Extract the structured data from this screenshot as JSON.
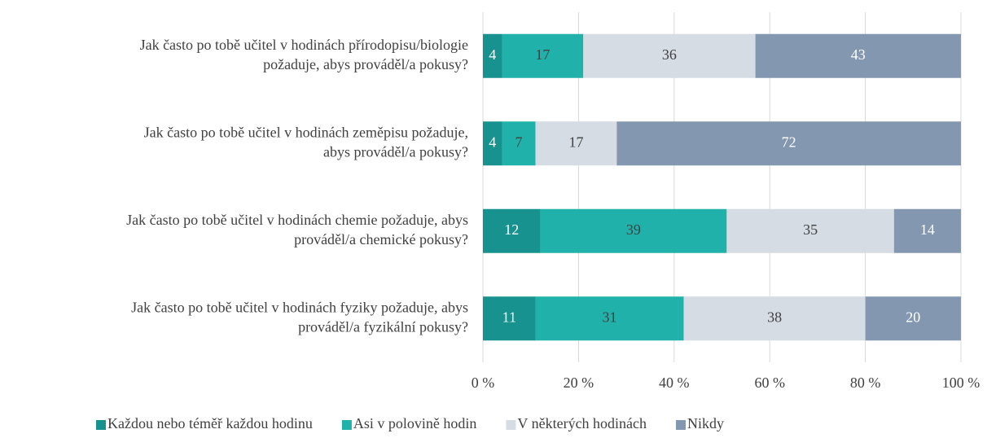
{
  "chart_data": {
    "type": "stacked_bar_horizontal",
    "categories": [
      [
        "Jak často po tobě učitel v hodinách přírodopisu/biologie",
        "požaduje, abys prováděl/a pokusy?"
      ],
      [
        "Jak často po tobě učitel v hodinách zeměpisu požaduje,",
        "abys prováděl/a pokusy?"
      ],
      [
        "Jak často po tobě učitel v hodinách chemie požaduje, abys",
        "prováděl/a chemické pokusy?"
      ],
      [
        "Jak často po tobě učitel v hodinách fyziky požaduje, abys",
        "prováděl/a fyzikální pokusy?"
      ]
    ],
    "series": [
      {
        "name": "Každou nebo téměř každou hodinu",
        "color": "#17928f",
        "label_color": "#ffffff",
        "values": [
          4,
          4,
          12,
          11
        ]
      },
      {
        "name": "Asi v polovině hodin",
        "color": "#20b2aa",
        "label_color": "#404040",
        "values": [
          17,
          7,
          39,
          31
        ]
      },
      {
        "name": "V některých hodinách",
        "color": "#d6dce4",
        "label_color": "#404040",
        "values": [
          36,
          17,
          35,
          38
        ]
      },
      {
        "name": "Nikdy",
        "color": "#8497b0",
        "label_color": "#ffffff",
        "values": [
          43,
          72,
          14,
          20
        ]
      }
    ],
    "xlim": [
      0,
      100
    ],
    "xticks": [
      {
        "value": 0,
        "label": "0 %"
      },
      {
        "value": 20,
        "label": "20 %"
      },
      {
        "value": 40,
        "label": "40 %"
      },
      {
        "value": 60,
        "label": "60 %"
      },
      {
        "value": 80,
        "label": "80 %"
      },
      {
        "value": 100,
        "label": "100 %"
      }
    ],
    "grid": true,
    "legend": "bottom"
  }
}
